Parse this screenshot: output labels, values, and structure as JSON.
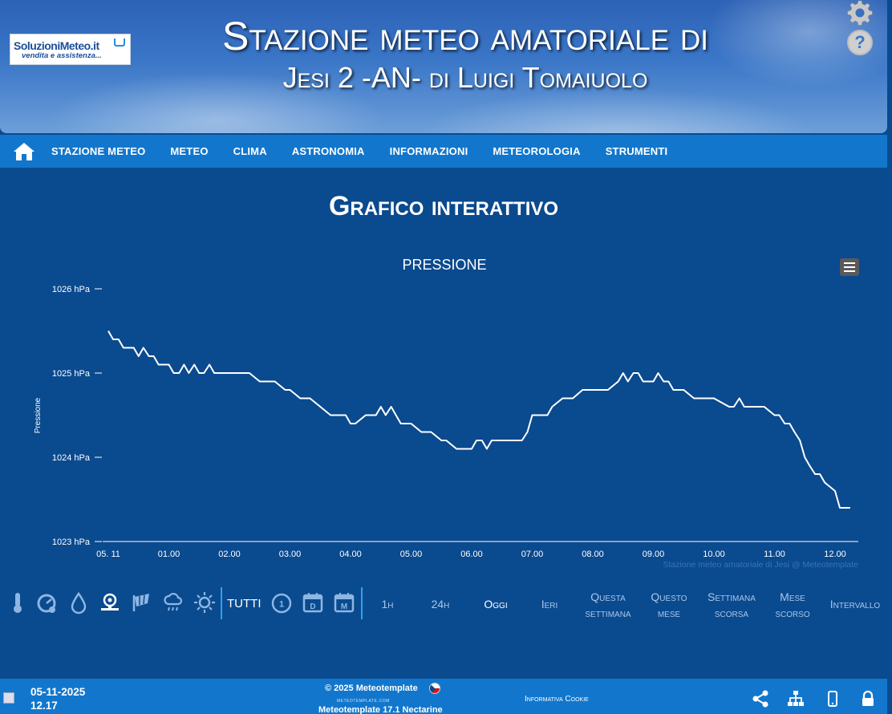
{
  "header": {
    "logo_line1": "SoluzioniMeteo.it",
    "logo_line2": "vendita e assistenza...",
    "title_line1": "Stazione meteo amatoriale di",
    "title_line2": "Jesi 2 -AN- di Luigi Tomaiuolo",
    "settings_icon": "gear-icon",
    "help_icon": "question-icon",
    "help_glyph": "?"
  },
  "nav": {
    "home_icon": "home-icon",
    "items": [
      "STAZIONE METEO",
      "METEO",
      "CLIMA",
      "ASTRONOMIA",
      "INFORMAZIONI",
      "METEOROLOGIA",
      "STRUMENTI"
    ]
  },
  "page": {
    "title": "Grafico interattivo"
  },
  "chart_data": {
    "type": "line",
    "title": "PRESSIONE",
    "ylabel": "Pressione",
    "ylim": [
      1023,
      1026
    ],
    "y_ticks": [
      "1023 hPa",
      "1024 hPa",
      "1025 hPa",
      "1026 hPa"
    ],
    "x_ticks": [
      "05. 11",
      "01.00",
      "02.00",
      "03.00",
      "04.00",
      "05.00",
      "06.00",
      "07.00",
      "08.00",
      "09.00",
      "10.00",
      "11.00",
      "12.00"
    ],
    "credits": "Stazione meteo amatoriale di Jesi @ Meteotemplate",
    "grid": false,
    "legend": "none",
    "color": "#ffffff",
    "series": [
      {
        "x": [
          0,
          0.08,
          0.17,
          0.25,
          0.33,
          0.42,
          0.5,
          0.58,
          0.67,
          0.75,
          0.83,
          0.92,
          1.0,
          1.08,
          1.17,
          1.25,
          1.33,
          1.42,
          1.5,
          1.58,
          1.67,
          1.75,
          1.83,
          1.92,
          2.0,
          2.17,
          2.33,
          2.5,
          2.58,
          2.75,
          2.92,
          3.0,
          3.17,
          3.25,
          3.33,
          3.5,
          3.67,
          3.75,
          3.92,
          4.0,
          4.08,
          4.25,
          4.33,
          4.42,
          4.5,
          4.58,
          4.67,
          4.75,
          4.83,
          5.0,
          5.17,
          5.33,
          5.5,
          5.58,
          5.75,
          5.83,
          6.0,
          6.08,
          6.17,
          6.25,
          6.33,
          6.5,
          6.67,
          6.83,
          6.92,
          7.0,
          7.08,
          7.25,
          7.33,
          7.5,
          7.67,
          7.83,
          8.0,
          8.25,
          8.42,
          8.5,
          8.58,
          8.67,
          8.75,
          8.83,
          9.0,
          9.08,
          9.17,
          9.25,
          9.33,
          9.5,
          9.67,
          9.83,
          10.0,
          10.25,
          10.33,
          10.42,
          10.5,
          10.75,
          10.83,
          11.0,
          11.08,
          11.17,
          11.25,
          11.33,
          11.42,
          11.5,
          11.58,
          11.67,
          11.75,
          11.83,
          12.0,
          12.08,
          12.25
        ],
        "y": [
          1025.5,
          1025.4,
          1025.4,
          1025.3,
          1025.3,
          1025.3,
          1025.2,
          1025.3,
          1025.2,
          1025.2,
          1025.1,
          1025.1,
          1025.1,
          1025.0,
          1025.0,
          1025.1,
          1025.0,
          1025.1,
          1025.0,
          1025.0,
          1025.1,
          1025.0,
          1025.0,
          1025.0,
          1025.0,
          1025.0,
          1025.0,
          1024.9,
          1024.9,
          1024.9,
          1024.8,
          1024.8,
          1024.7,
          1024.7,
          1024.7,
          1024.6,
          1024.5,
          1024.5,
          1024.5,
          1024.4,
          1024.4,
          1024.5,
          1024.5,
          1024.5,
          1024.6,
          1024.5,
          1024.6,
          1024.5,
          1024.4,
          1024.4,
          1024.3,
          1024.3,
          1024.2,
          1024.2,
          1024.1,
          1024.1,
          1024.1,
          1024.2,
          1024.2,
          1024.1,
          1024.2,
          1024.2,
          1024.2,
          1024.2,
          1024.3,
          1024.5,
          1024.5,
          1024.5,
          1024.6,
          1024.7,
          1024.7,
          1024.8,
          1024.8,
          1024.8,
          1024.9,
          1025.0,
          1024.9,
          1025.0,
          1025.0,
          1024.9,
          1024.9,
          1025.0,
          1024.9,
          1024.9,
          1024.8,
          1024.8,
          1024.7,
          1024.7,
          1024.7,
          1024.6,
          1024.6,
          1024.7,
          1024.6,
          1024.6,
          1024.6,
          1024.5,
          1024.5,
          1024.4,
          1024.4,
          1024.3,
          1024.2,
          1024.0,
          1023.9,
          1023.8,
          1023.8,
          1023.7,
          1023.6,
          1023.4,
          1023.4
        ]
      }
    ]
  },
  "toolbar": {
    "param_icons": [
      "thermometer-icon",
      "gauge-icon",
      "drop-icon",
      "wind-vane-icon",
      "windsock-icon",
      "rain-cloud-icon",
      "sun-icon"
    ],
    "tutti_label": "TUTTI",
    "range_icons": [
      "clock-1-icon",
      "calendar-day-icon",
      "calendar-month-icon"
    ],
    "range_icon_letters": [
      "1",
      "D",
      "M"
    ],
    "periods": [
      {
        "line1": "1h",
        "line2": ""
      },
      {
        "line1": "24h",
        "line2": ""
      },
      {
        "line1": "Oggi",
        "line2": ""
      },
      {
        "line1": "Ieri",
        "line2": ""
      },
      {
        "line1": "Questa",
        "line2": "settimana"
      },
      {
        "line1": "Questo",
        "line2": "mese"
      },
      {
        "line1": "Settimana",
        "line2": "scorsa"
      },
      {
        "line1": "Mese",
        "line2": "scorso"
      },
      {
        "line1": "Intervallo",
        "line2": ""
      }
    ]
  },
  "footer": {
    "date": "05-11-2025",
    "time": "12.17",
    "copyright": "© 2025  Meteotemplate",
    "site": "meteotemplate.com",
    "version": "Meteotemplate 17.1 Nectarine",
    "cookie": "Informativa Cookie",
    "icons": [
      "share-icon",
      "sitemap-icon",
      "mobile-icon",
      "lock-icon"
    ]
  },
  "colors": {
    "background": "#0a4a8f",
    "nav": "#1277cc",
    "line": "#ffffff",
    "separator": "#2ea3f0"
  }
}
